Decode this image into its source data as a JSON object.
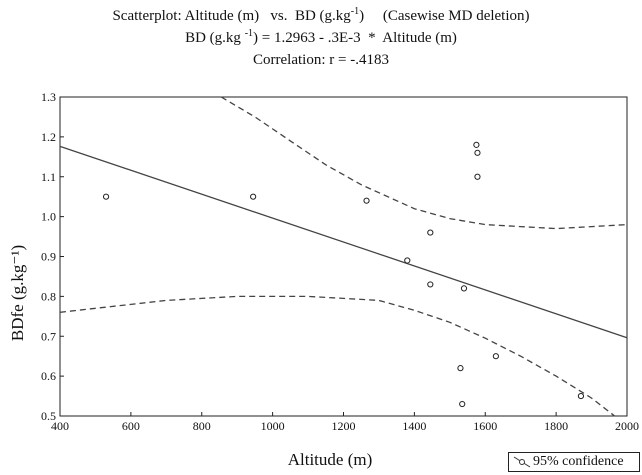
{
  "chart_data": {
    "type": "scatter",
    "title_prefix": "Scatterplot: Altitude (m)   vs.  BD (g.kg",
    "title_sup": "-1",
    "title_suffix": ")     (Casewise MD deletion)",
    "equation_prefix": "BD (g.kg ",
    "equation_sup": "-1",
    "equation_suffix": ") = 1.2963 - .3E-3  *  Altitude (m)",
    "correlation": "Correlation: r = -.4183",
    "xlabel": "Altitude (m)",
    "ylabel": "BDfe (g.kg⁻¹)",
    "xlim": [
      400,
      2000
    ],
    "ylim": [
      0.5,
      1.3
    ],
    "x_ticks": [
      "400",
      "600",
      "800",
      "1000",
      "1200",
      "1400",
      "1600",
      "1800",
      "2000"
    ],
    "y_ticks": [
      "0.5",
      "0.6",
      "0.7",
      "0.8",
      "0.9",
      "1.0",
      "1.1",
      "1.2",
      "1.3"
    ],
    "points": [
      {
        "x": 530,
        "y": 1.05
      },
      {
        "x": 945,
        "y": 1.05
      },
      {
        "x": 1265,
        "y": 1.04
      },
      {
        "x": 1380,
        "y": 0.89
      },
      {
        "x": 1445,
        "y": 0.96
      },
      {
        "x": 1445,
        "y": 0.83
      },
      {
        "x": 1530,
        "y": 0.62
      },
      {
        "x": 1535,
        "y": 0.53
      },
      {
        "x": 1540,
        "y": 0.82
      },
      {
        "x": 1575,
        "y": 1.18
      },
      {
        "x": 1578,
        "y": 1.16
      },
      {
        "x": 1578,
        "y": 1.1
      },
      {
        "x": 1630,
        "y": 0.65
      },
      {
        "x": 1870,
        "y": 0.55
      }
    ],
    "regression": {
      "intercept": 1.2963,
      "slope": -0.0003,
      "x_range": [
        400,
        2000
      ]
    },
    "confidence_upper": [
      {
        "x": 855,
        "y": 1.3
      },
      {
        "x": 950,
        "y": 1.25
      },
      {
        "x": 1050,
        "y": 1.19
      },
      {
        "x": 1150,
        "y": 1.13
      },
      {
        "x": 1250,
        "y": 1.08
      },
      {
        "x": 1300,
        "y": 1.06
      },
      {
        "x": 1400,
        "y": 1.02
      },
      {
        "x": 1500,
        "y": 0.995
      },
      {
        "x": 1600,
        "y": 0.98
      },
      {
        "x": 1700,
        "y": 0.975
      },
      {
        "x": 1800,
        "y": 0.97
      },
      {
        "x": 1900,
        "y": 0.975
      },
      {
        "x": 2000,
        "y": 0.98
      }
    ],
    "confidence_lower": [
      {
        "x": 400,
        "y": 0.76
      },
      {
        "x": 500,
        "y": 0.77
      },
      {
        "x": 600,
        "y": 0.78
      },
      {
        "x": 700,
        "y": 0.79
      },
      {
        "x": 800,
        "y": 0.795
      },
      {
        "x": 900,
        "y": 0.8
      },
      {
        "x": 1000,
        "y": 0.8
      },
      {
        "x": 1100,
        "y": 0.8
      },
      {
        "x": 1200,
        "y": 0.795
      },
      {
        "x": 1300,
        "y": 0.79
      },
      {
        "x": 1400,
        "y": 0.765
      },
      {
        "x": 1500,
        "y": 0.735
      },
      {
        "x": 1600,
        "y": 0.695
      },
      {
        "x": 1700,
        "y": 0.65
      },
      {
        "x": 1800,
        "y": 0.6
      },
      {
        "x": 1900,
        "y": 0.545
      },
      {
        "x": 1965,
        "y": 0.5
      }
    ],
    "legend": "95% confidence",
    "grid": false
  }
}
